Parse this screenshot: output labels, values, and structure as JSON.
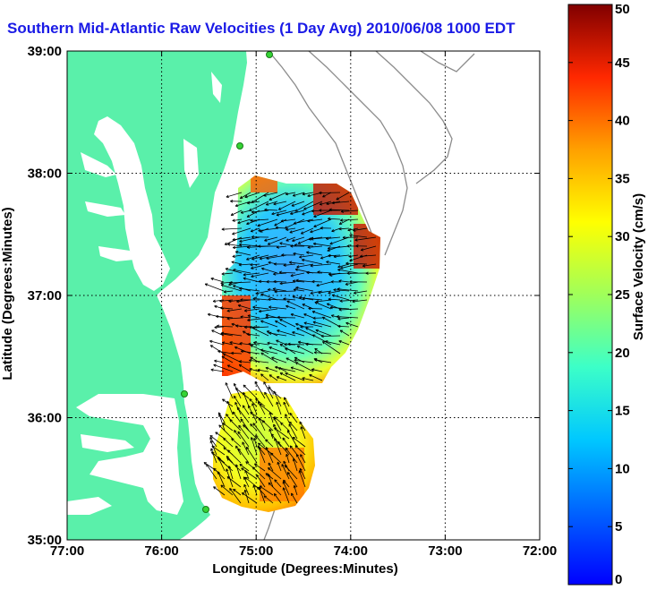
{
  "title": "Southern Mid-Atlantic Raw Velocities (1 Day Avg) 2010/06/08 1000 EDT",
  "x_axis": {
    "label": "Longitude (Degrees:Minutes)",
    "ticks": [
      "77:00",
      "76:00",
      "75:00",
      "74:00",
      "73:00",
      "72:00"
    ]
  },
  "y_axis": {
    "label": "Latitude (Degrees:Minutes)",
    "ticks": [
      "39:00",
      "38:00",
      "37:00",
      "36:00",
      "35:00"
    ]
  },
  "colorbar": {
    "label": "Surface Velocity (cm/s)",
    "ticks": [
      "50",
      "45",
      "40",
      "35",
      "30",
      "25",
      "20",
      "15",
      "10",
      "5",
      "0"
    ],
    "min": 0,
    "max": 50
  },
  "colors": {
    "land": "#5af0aa",
    "water": "#ffffff",
    "bathymetry": "#8c8c8c",
    "title": "#1a1ae6",
    "station": "#35d435"
  },
  "map_extent": {
    "lon_west": -77,
    "lon_east": -72,
    "lat_south": 35,
    "lat_north": 39
  },
  "grid": "dotted",
  "station_markers": 4
}
